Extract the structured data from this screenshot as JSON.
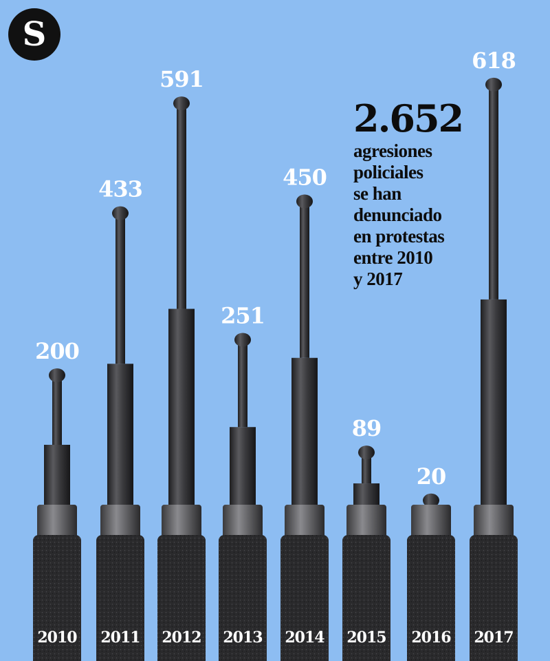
{
  "logo": {
    "letter": "S"
  },
  "headline": {
    "total": "2.652",
    "text": "agresiones\npoliciales\nse han\ndenunciado\nen protestas\nentre 2010\ny 2017"
  },
  "colors": {
    "background": "#8dbdf2",
    "baton": "#2b2b2e",
    "text": "#ffffff"
  },
  "chart_data": {
    "type": "bar",
    "categories": [
      "2010",
      "2011",
      "2012",
      "2013",
      "2014",
      "2015",
      "2016",
      "2017"
    ],
    "values": [
      200,
      433,
      591,
      251,
      450,
      89,
      20,
      618
    ],
    "title": "",
    "xlabel": "",
    "ylabel": "",
    "grid": false,
    "mark": "telescopic baton"
  }
}
